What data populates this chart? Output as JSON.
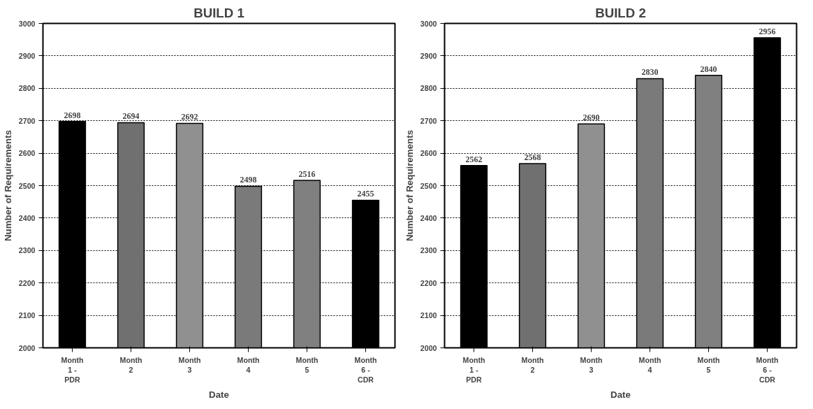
{
  "chart_data": [
    {
      "type": "bar",
      "title": "BUILD 1",
      "xlabel": "Date",
      "ylabel": "Number of Requirements",
      "categories": [
        "Month\n1 -\nPDR",
        "Month\n2",
        "Month\n3",
        "Month\n4",
        "Month\n5",
        "Month\n6 -\nCDR"
      ],
      "values": [
        2698,
        2694,
        2692,
        2498,
        2516,
        2455
      ],
      "colors": [
        "#000000",
        "#707070",
        "#909090",
        "#7a7a7a",
        "#808080",
        "#000000"
      ],
      "ylim": [
        2000,
        3000
      ],
      "yticks": [
        2000,
        2100,
        2200,
        2300,
        2400,
        2500,
        2600,
        2700,
        2800,
        2900,
        3000
      ],
      "grid": "y",
      "data_labels": true
    },
    {
      "type": "bar",
      "title": "BUILD 2",
      "xlabel": "Date",
      "ylabel": "Number of Requirements",
      "categories": [
        "Month\n1 -\nPDR",
        "Month\n2",
        "Month\n3",
        "Month\n4",
        "Month\n5",
        "Month\n6 -\nCDR"
      ],
      "values": [
        2562,
        2568,
        2690,
        2830,
        2840,
        2956
      ],
      "colors": [
        "#000000",
        "#707070",
        "#909090",
        "#7a7a7a",
        "#808080",
        "#000000"
      ],
      "ylim": [
        2000,
        3000
      ],
      "yticks": [
        2000,
        2100,
        2200,
        2300,
        2400,
        2500,
        2600,
        2700,
        2800,
        2900,
        3000
      ],
      "grid": "y",
      "data_labels": true
    }
  ]
}
